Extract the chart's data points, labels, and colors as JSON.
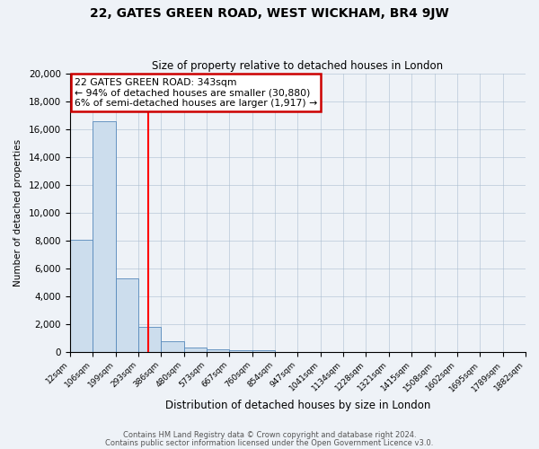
{
  "title1": "22, GATES GREEN ROAD, WEST WICKHAM, BR4 9JW",
  "title2": "Size of property relative to detached houses in London",
  "xlabel": "Distribution of detached houses by size in London",
  "ylabel": "Number of detached properties",
  "bar_color": "#ccdded",
  "bar_edge_color": "#5588bb",
  "bin_labels": [
    "12sqm",
    "106sqm",
    "199sqm",
    "293sqm",
    "386sqm",
    "480sqm",
    "573sqm",
    "667sqm",
    "760sqm",
    "854sqm",
    "947sqm",
    "1041sqm",
    "1134sqm",
    "1228sqm",
    "1321sqm",
    "1415sqm",
    "1508sqm",
    "1602sqm",
    "1695sqm",
    "1789sqm",
    "1882sqm"
  ],
  "bar_heights": [
    8050,
    16600,
    5250,
    1800,
    750,
    300,
    175,
    120,
    100,
    0,
    0,
    0,
    0,
    0,
    0,
    0,
    0,
    0,
    0,
    0
  ],
  "n_bins": 20,
  "ylim": [
    0,
    20000
  ],
  "yticks": [
    0,
    2000,
    4000,
    6000,
    8000,
    10000,
    12000,
    14000,
    16000,
    18000,
    20000
  ],
  "vline_x": 3.45,
  "vline_color": "red",
  "ann_line1": "22 GATES GREEN ROAD: 343sqm",
  "ann_line2": "← 94% of detached houses are smaller (30,880)",
  "ann_line3": "6% of semi-detached houses are larger (1,917) →",
  "footer1": "Contains HM Land Registry data © Crown copyright and database right 2024.",
  "footer2": "Contains public sector information licensed under the Open Government Licence v3.0.",
  "bg_color": "#eef2f7",
  "plot_bg_color": "#eef2f7",
  "grid_color": "#aabdd0"
}
